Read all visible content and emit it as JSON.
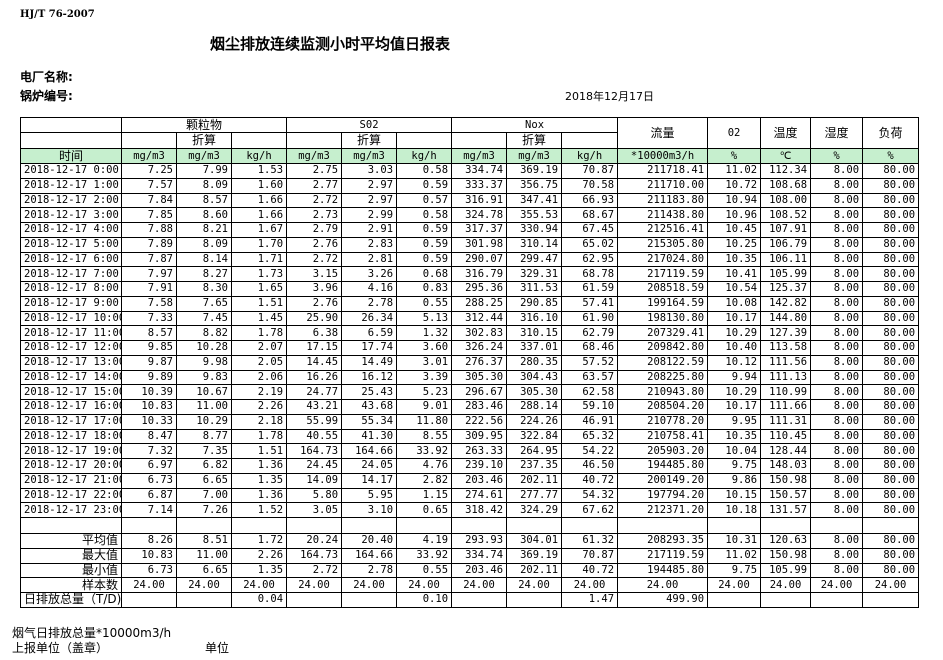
{
  "standard": "HJ/T  76-2007",
  "title": "烟尘排放连续监测小时平均值日报表",
  "plant_label": "电厂名称:",
  "boiler_label": "锅炉编号:",
  "date": "2018年12月17日",
  "header": {
    "groups": [
      "颗粒物",
      "S02",
      "Nox"
    ],
    "converted": "折算",
    "flow": "流量",
    "o2": "02",
    "temp": "温度",
    "humidity": "湿度",
    "load": "负荷",
    "time": "时间",
    "units": [
      "mg/m3",
      "mg/m3",
      "kg/h",
      "mg/m3",
      "mg/m3",
      "kg/h",
      "mg/m3",
      "mg/m3",
      "kg/h",
      "*10000m3/h",
      "%",
      "℃",
      "%",
      "%"
    ]
  },
  "rows": [
    [
      "2018-12-17 0:00",
      "7.25",
      "7.99",
      "1.53",
      "2.75",
      "3.03",
      "0.58",
      "334.74",
      "369.19",
      "70.87",
      "211718.41",
      "11.02",
      "112.34",
      "8.00",
      "80.00"
    ],
    [
      "2018-12-17 1:00",
      "7.57",
      "8.09",
      "1.60",
      "2.77",
      "2.97",
      "0.59",
      "333.37",
      "356.75",
      "70.58",
      "211710.00",
      "10.72",
      "108.68",
      "8.00",
      "80.00"
    ],
    [
      "2018-12-17 2:00",
      "7.84",
      "8.57",
      "1.66",
      "2.72",
      "2.97",
      "0.57",
      "316.91",
      "347.41",
      "66.93",
      "211183.80",
      "10.94",
      "108.00",
      "8.00",
      "80.00"
    ],
    [
      "2018-12-17 3:00",
      "7.85",
      "8.60",
      "1.66",
      "2.73",
      "2.99",
      "0.58",
      "324.78",
      "355.53",
      "68.67",
      "211438.80",
      "10.96",
      "108.52",
      "8.00",
      "80.00"
    ],
    [
      "2018-12-17 4:00",
      "7.88",
      "8.21",
      "1.67",
      "2.79",
      "2.91",
      "0.59",
      "317.37",
      "330.94",
      "67.45",
      "212516.41",
      "10.45",
      "107.91",
      "8.00",
      "80.00"
    ],
    [
      "2018-12-17 5:00",
      "7.89",
      "8.09",
      "1.70",
      "2.76",
      "2.83",
      "0.59",
      "301.98",
      "310.14",
      "65.02",
      "215305.80",
      "10.25",
      "106.79",
      "8.00",
      "80.00"
    ],
    [
      "2018-12-17 6:00",
      "7.87",
      "8.14",
      "1.71",
      "2.72",
      "2.81",
      "0.59",
      "290.07",
      "299.47",
      "62.95",
      "217024.80",
      "10.35",
      "106.11",
      "8.00",
      "80.00"
    ],
    [
      "2018-12-17 7:00",
      "7.97",
      "8.27",
      "1.73",
      "3.15",
      "3.26",
      "0.68",
      "316.79",
      "329.31",
      "68.78",
      "217119.59",
      "10.41",
      "105.99",
      "8.00",
      "80.00"
    ],
    [
      "2018-12-17 8:00",
      "7.91",
      "8.30",
      "1.65",
      "3.96",
      "4.16",
      "0.83",
      "295.36",
      "311.53",
      "61.59",
      "208518.59",
      "10.54",
      "125.37",
      "8.00",
      "80.00"
    ],
    [
      "2018-12-17 9:00",
      "7.58",
      "7.65",
      "1.51",
      "2.76",
      "2.78",
      "0.55",
      "288.25",
      "290.85",
      "57.41",
      "199164.59",
      "10.08",
      "142.82",
      "8.00",
      "80.00"
    ],
    [
      "2018-12-17 10:00",
      "7.33",
      "7.45",
      "1.45",
      "25.90",
      "26.34",
      "5.13",
      "312.44",
      "316.10",
      "61.90",
      "198130.80",
      "10.17",
      "144.80",
      "8.00",
      "80.00"
    ],
    [
      "2018-12-17 11:00",
      "8.57",
      "8.82",
      "1.78",
      "6.38",
      "6.59",
      "1.32",
      "302.83",
      "310.15",
      "62.79",
      "207329.41",
      "10.29",
      "127.39",
      "8.00",
      "80.00"
    ],
    [
      "2018-12-17 12:00",
      "9.85",
      "10.28",
      "2.07",
      "17.15",
      "17.74",
      "3.60",
      "326.24",
      "337.01",
      "68.46",
      "209842.80",
      "10.40",
      "113.58",
      "8.00",
      "80.00"
    ],
    [
      "2018-12-17 13:00",
      "9.87",
      "9.98",
      "2.05",
      "14.45",
      "14.49",
      "3.01",
      "276.37",
      "280.35",
      "57.52",
      "208122.59",
      "10.12",
      "111.56",
      "8.00",
      "80.00"
    ],
    [
      "2018-12-17 14:00",
      "9.89",
      "9.83",
      "2.06",
      "16.26",
      "16.12",
      "3.39",
      "305.30",
      "304.43",
      "63.57",
      "208225.80",
      "9.94",
      "111.13",
      "8.00",
      "80.00"
    ],
    [
      "2018-12-17 15:00",
      "10.39",
      "10.67",
      "2.19",
      "24.77",
      "25.43",
      "5.23",
      "296.67",
      "305.30",
      "62.58",
      "210943.80",
      "10.29",
      "110.99",
      "8.00",
      "80.00"
    ],
    [
      "2018-12-17 16:00",
      "10.83",
      "11.00",
      "2.26",
      "43.21",
      "43.68",
      "9.01",
      "283.46",
      "288.14",
      "59.10",
      "208504.20",
      "10.17",
      "111.66",
      "8.00",
      "80.00"
    ],
    [
      "2018-12-17 17:00",
      "10.33",
      "10.29",
      "2.18",
      "55.99",
      "55.34",
      "11.80",
      "222.56",
      "224.26",
      "46.91",
      "210778.20",
      "9.95",
      "111.31",
      "8.00",
      "80.00"
    ],
    [
      "2018-12-17 18:00",
      "8.47",
      "8.77",
      "1.78",
      "40.55",
      "41.30",
      "8.55",
      "309.95",
      "322.84",
      "65.32",
      "210758.41",
      "10.35",
      "110.45",
      "8.00",
      "80.00"
    ],
    [
      "2018-12-17 19:00",
      "7.32",
      "7.35",
      "1.51",
      "164.73",
      "164.66",
      "33.92",
      "263.33",
      "264.95",
      "54.22",
      "205903.20",
      "10.04",
      "128.44",
      "8.00",
      "80.00"
    ],
    [
      "2018-12-17 20:00",
      "6.97",
      "6.82",
      "1.36",
      "24.45",
      "24.05",
      "4.76",
      "239.10",
      "237.35",
      "46.50",
      "194485.80",
      "9.75",
      "148.03",
      "8.00",
      "80.00"
    ],
    [
      "2018-12-17 21:00",
      "6.73",
      "6.65",
      "1.35",
      "14.09",
      "14.17",
      "2.82",
      "203.46",
      "202.11",
      "40.72",
      "200149.20",
      "9.86",
      "150.98",
      "8.00",
      "80.00"
    ],
    [
      "2018-12-17 22:00",
      "6.87",
      "7.00",
      "1.36",
      "5.80",
      "5.95",
      "1.15",
      "274.61",
      "277.77",
      "54.32",
      "197794.20",
      "10.15",
      "150.57",
      "8.00",
      "80.00"
    ],
    [
      "2018-12-17 23:00",
      "7.14",
      "7.26",
      "1.52",
      "3.05",
      "3.10",
      "0.65",
      "318.42",
      "324.29",
      "67.62",
      "212371.20",
      "10.18",
      "131.57",
      "8.00",
      "80.00"
    ]
  ],
  "stats": [
    [
      "平均值",
      "8.26",
      "8.51",
      "1.72",
      "20.24",
      "20.40",
      "4.19",
      "293.93",
      "304.01",
      "61.32",
      "208293.35",
      "10.31",
      "120.63",
      "8.00",
      "80.00"
    ],
    [
      "最大值",
      "10.83",
      "11.00",
      "2.26",
      "164.73",
      "164.66",
      "33.92",
      "334.74",
      "369.19",
      "70.87",
      "217119.59",
      "11.02",
      "150.98",
      "8.00",
      "80.00"
    ],
    [
      "最小值",
      "6.73",
      "6.65",
      "1.35",
      "2.72",
      "2.78",
      "0.55",
      "203.46",
      "202.11",
      "40.72",
      "194485.80",
      "9.75",
      "105.99",
      "8.00",
      "80.00"
    ],
    [
      "样本数",
      "24.00",
      "24.00",
      "24.00",
      "24.00",
      "24.00",
      "24.00",
      "24.00",
      "24.00",
      "24.00",
      "24.00",
      "24.00",
      "24.00",
      "24.00",
      "24.00"
    ]
  ],
  "daily_total": [
    "日排放总量（T/D)",
    "",
    "",
    "0.04",
    "",
    "",
    "0.10",
    "",
    "",
    "1.47",
    "499.90",
    "",
    "",
    "",
    ""
  ],
  "footer": {
    "flue_gas_total": "烟气日排放总量*10000m3/h",
    "reporting_unit": "上报单位（盖章）",
    "unit": "单位"
  },
  "colors": {
    "unit_row_bg": "#c6efce"
  }
}
